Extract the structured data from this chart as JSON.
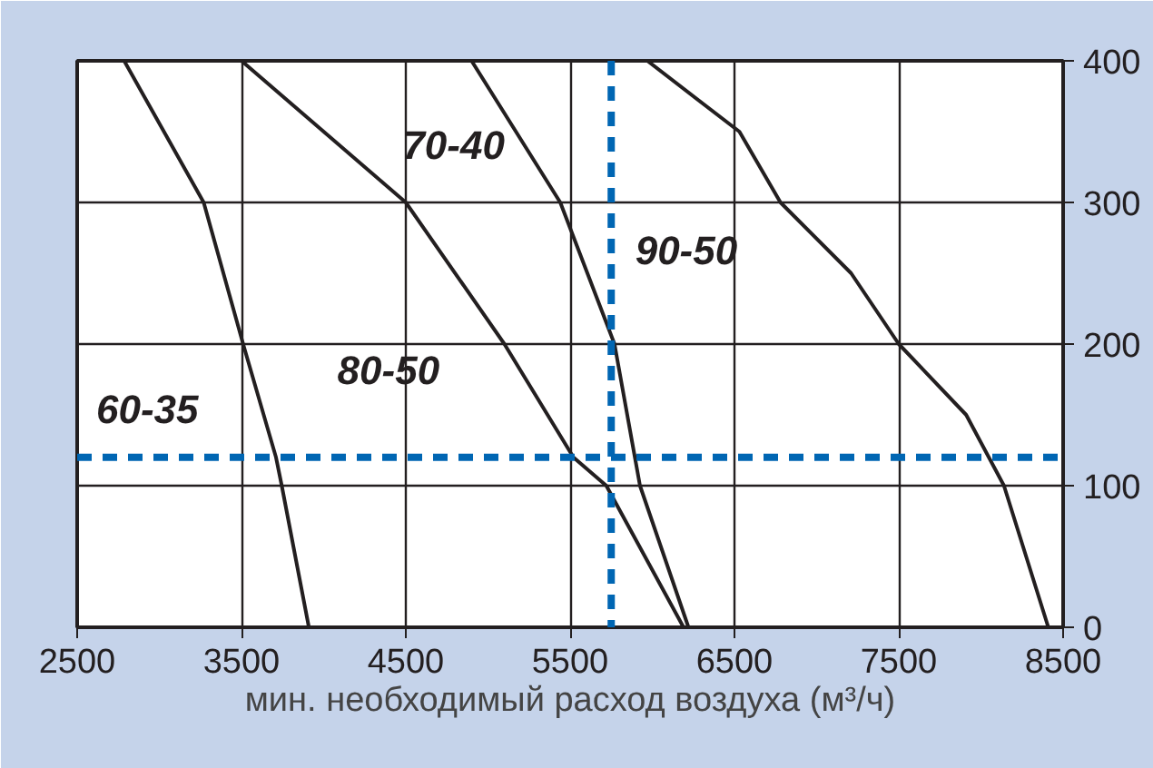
{
  "chart_data": {
    "type": "line",
    "xlabel": "мин. необходимый расход воздуха (м³/ч)",
    "xlim": [
      2500,
      8500
    ],
    "xticks": [
      2500,
      3500,
      4500,
      5500,
      6500,
      7500,
      8500
    ],
    "ylim": [
      0,
      400
    ],
    "yticks": [
      0,
      100,
      200,
      300,
      400
    ],
    "grid": true,
    "series": [
      {
        "name": "60-35",
        "color": "#231f20",
        "x": [
          2786,
          3270,
          3510,
          3710,
          3745,
          3910
        ],
        "values": [
          400,
          300,
          200,
          120,
          100,
          0
        ]
      },
      {
        "name": "80-50",
        "color": "#231f20",
        "x": [
          3500,
          4500,
          5100,
          5520,
          5720,
          6190
        ],
        "values": [
          400,
          300,
          200,
          120,
          100,
          0
        ]
      },
      {
        "name": "70-40",
        "color": "#231f20",
        "x": [
          4900,
          5440,
          5770,
          5925,
          6220
        ],
        "values": [
          400,
          300,
          200,
          100,
          0
        ]
      },
      {
        "name": "90-50",
        "color": "#231f20",
        "x": [
          5970,
          6530,
          6780,
          7210,
          7500,
          7910,
          8140,
          8410
        ],
        "values": [
          400,
          350,
          300,
          250,
          200,
          150,
          100,
          0
        ]
      }
    ],
    "ref_lines": [
      {
        "axis": "x",
        "value": 5750,
        "color": "#0066b3",
        "line_style": "dashed"
      },
      {
        "axis": "y",
        "value": 120,
        "color": "#0066b3",
        "line_style": "dashed"
      }
    ]
  }
}
